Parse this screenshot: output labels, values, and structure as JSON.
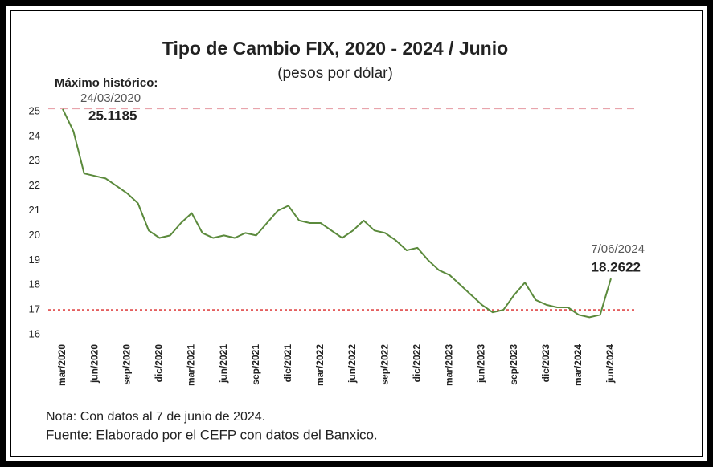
{
  "chart_data": {
    "type": "line",
    "title": "Tipo de Cambio FIX, 2020 - 2024 / Junio",
    "subtitle": "(pesos por dólar)",
    "categories": [
      "mar/2020",
      null,
      null,
      "jun/2020",
      null,
      null,
      "sep/2020",
      null,
      null,
      "dic/2020",
      null,
      null,
      "mar/2021",
      null,
      null,
      "jun/2021",
      null,
      null,
      "sep/2021",
      null,
      null,
      "dic/2021",
      null,
      null,
      "mar/2022",
      null,
      null,
      "jun/2022",
      null,
      null,
      "sep/2022",
      null,
      null,
      "dic/2022",
      null,
      null,
      "mar/2023",
      null,
      null,
      "jun/2023",
      null,
      null,
      "sep/2023",
      null,
      null,
      "dic/2023",
      null,
      null,
      "mar/2024",
      null,
      null,
      "jun/2024"
    ],
    "series": [
      {
        "color": "#5b8a3c",
        "values": [
          25.1,
          24.2,
          22.5,
          22.4,
          22.3,
          22.0,
          21.7,
          21.3,
          20.2,
          19.9,
          20.0,
          20.5,
          20.9,
          20.1,
          19.9,
          20.0,
          19.9,
          20.1,
          20.0,
          20.5,
          21.0,
          21.2,
          20.6,
          20.5,
          20.5,
          20.2,
          19.9,
          20.2,
          20.6,
          20.2,
          20.1,
          19.8,
          19.4,
          19.5,
          19.0,
          18.6,
          18.4,
          18.0,
          17.6,
          17.2,
          16.9,
          17.0,
          17.6,
          18.1,
          17.4,
          17.2,
          17.1,
          17.1,
          16.8,
          16.7,
          16.8,
          18.2622
        ]
      }
    ],
    "ylim": [
      16,
      25
    ],
    "yticks": [
      16,
      17,
      18,
      19,
      20,
      21,
      22,
      23,
      24,
      25
    ],
    "ref_lines": [
      {
        "value": 25.1185,
        "color": "#e8a4ac"
      },
      {
        "value": 17,
        "color": "#e04848"
      }
    ],
    "annotations": {
      "max_title": "Máximo histórico:",
      "max_date": "24/03/2020",
      "max_value": "25.1185",
      "last_date": "7/06/2024",
      "last_value": "18.2622"
    },
    "notes": [
      "Nota: Con datos al 7 de junio de 2024.",
      "Fuente: Elaborado por el CEFP con datos del Banxico."
    ]
  }
}
